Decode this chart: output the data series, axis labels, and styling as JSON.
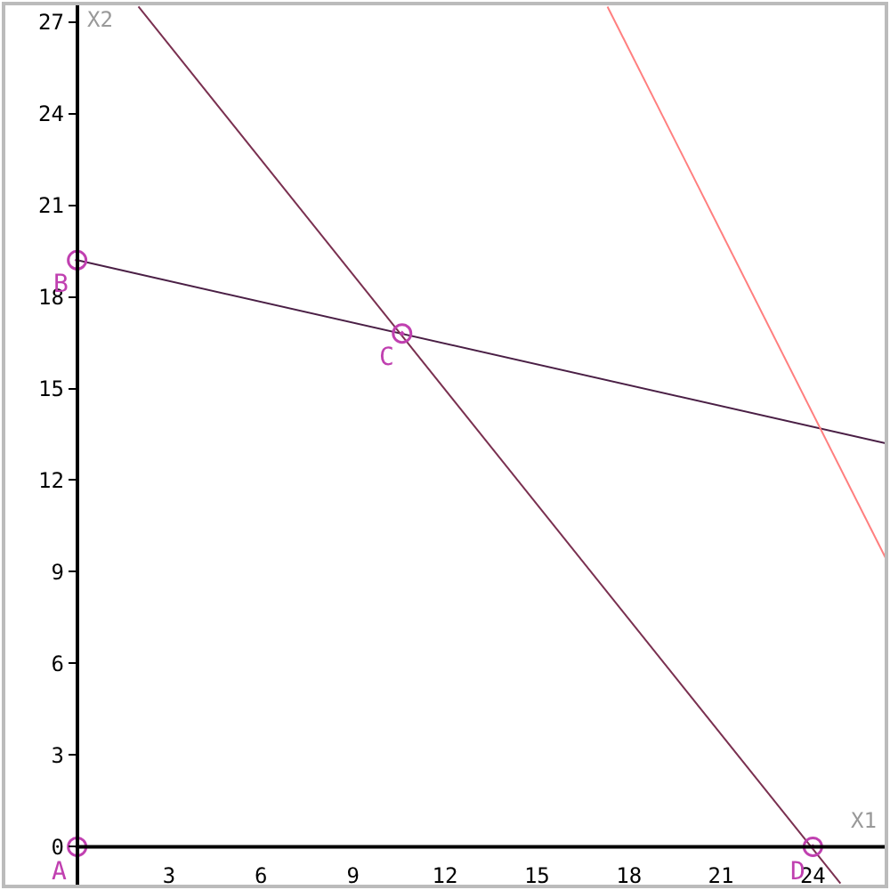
{
  "chart_data": {
    "type": "line",
    "xlabel": "X1",
    "ylabel": "X2",
    "xlim": [
      -2.4,
      26.4
    ],
    "ylim": [
      -1.3,
      27.6
    ],
    "xticks": [
      3,
      6,
      9,
      12,
      15,
      18,
      21,
      24
    ],
    "yticks": [
      0,
      3,
      6,
      9,
      12,
      15,
      18,
      21,
      24,
      27
    ],
    "ref_lines": [
      {
        "axis": "y",
        "value": 0,
        "color": "#000000"
      }
    ],
    "marker": "none",
    "line_style": "solid",
    "series": [
      {
        "x": [
          0,
          26.4
        ],
        "values": [
          19.2,
          13.2
        ],
        "color": "#4a1f45"
      },
      {
        "x": [
          2.0,
          24.9
        ],
        "values": [
          27.5,
          -1.2
        ],
        "color": "#7a3050"
      },
      {
        "x": [
          17.3,
          26.4
        ],
        "values": [
          27.5,
          9.4
        ],
        "color": "#ff7f7f"
      },
      {
        "type": "scatter",
        "marker": "circle",
        "x": [
          0,
          0,
          10.6,
          24
        ],
        "values": [
          0,
          19.2,
          16.8,
          0
        ],
        "color": "#c040b0"
      }
    ],
    "annotations": [
      {
        "text": "A",
        "x": 0,
        "y": 0
      },
      {
        "text": "B",
        "x": 0,
        "y": 19.2
      },
      {
        "text": "C",
        "x": 10.6,
        "y": 16.8
      },
      {
        "text": "D",
        "x": 24,
        "y": 0
      }
    ]
  }
}
